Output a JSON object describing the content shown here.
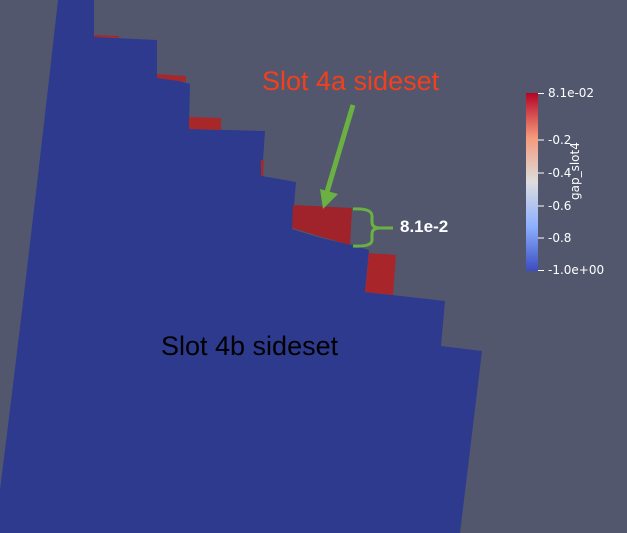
{
  "annotations": {
    "slot_4a": "Slot 4a sideset",
    "slot_4b": "Slot 4b sideset",
    "gap_value": "8.1e-2"
  },
  "colorbar": {
    "title": "gap_slot4",
    "ticks": [
      "8.1e-02",
      "-0.2",
      "-0.4",
      "-0.6",
      "-0.8",
      "-1.0e+00"
    ],
    "range": [
      -1.0,
      0.081
    ],
    "colormap": [
      "#3b4cc0",
      "#dddddd",
      "#b40426"
    ]
  },
  "colors": {
    "background": "#52576e",
    "slot_4b_surface": "#2e3a8e",
    "slot_4a_surface": "#a8262a",
    "annotation_arrow": "#6ab042",
    "annotation_title": "#f2401c"
  }
}
